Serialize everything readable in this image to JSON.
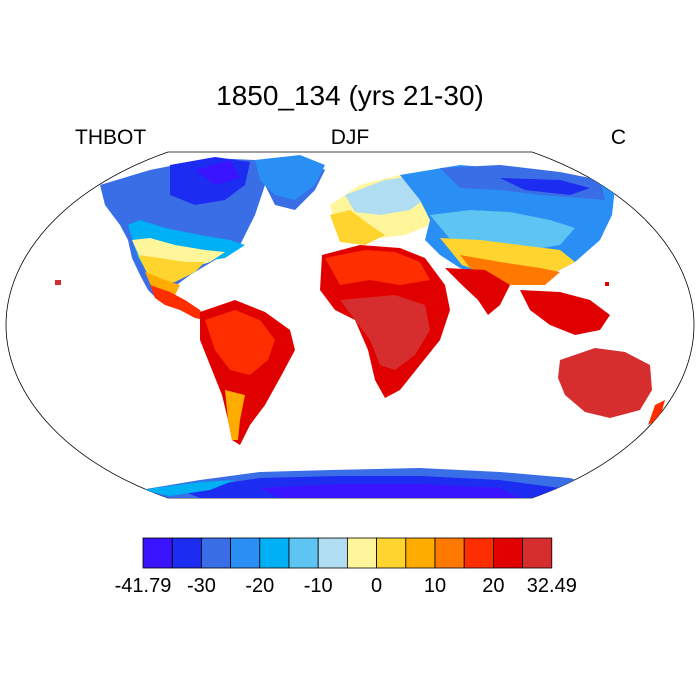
{
  "title": "1850_134 (yrs 21-30)",
  "left_label": "THBOT",
  "center_label": "DJF",
  "right_label": "C",
  "colorbar": {
    "colors": [
      "#3b14ff",
      "#1c2cf0",
      "#3a6ee6",
      "#2a8ff5",
      "#00b0f5",
      "#5ec4f2",
      "#b0ddf2",
      "#fff59a",
      "#ffd42e",
      "#ffab00",
      "#ff7800",
      "#ff2e00",
      "#e00000",
      "#d62e2e"
    ],
    "tick_labels": [
      "-41.79",
      "-30",
      "-20",
      "-10",
      "0",
      "10",
      "20",
      "32.49"
    ],
    "min": -41.79,
    "max": 32.49
  },
  "map": {
    "projection": "Robinson",
    "variable": "THBOT",
    "season": "DJF",
    "units": "C"
  }
}
